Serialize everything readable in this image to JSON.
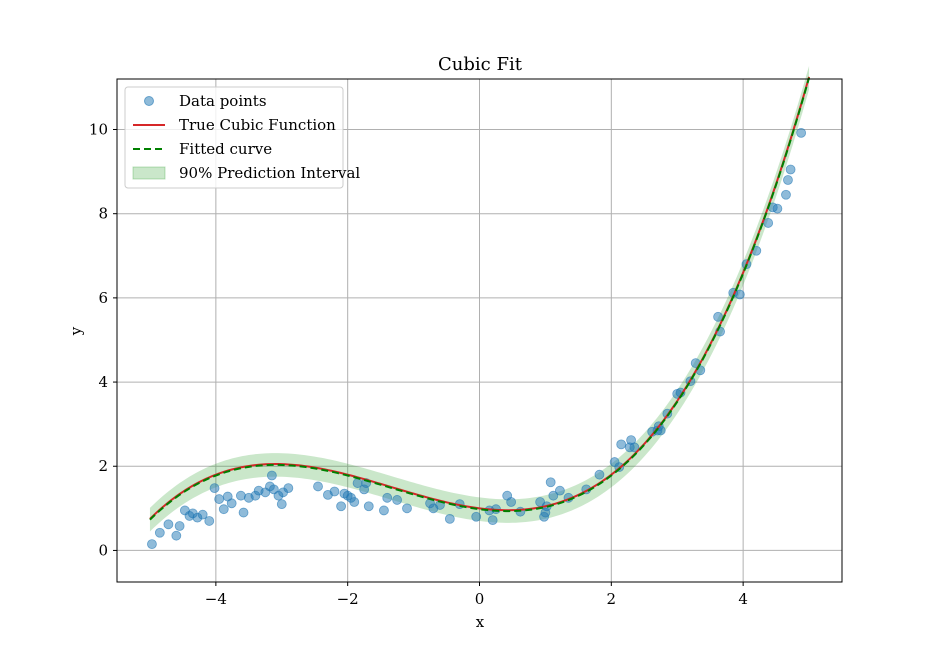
{
  "chart_data": {
    "type": "scatter",
    "title": "Cubic Fit",
    "xlabel": "x",
    "ylabel": "y",
    "xlim": [
      -5.5,
      5.5
    ],
    "ylim": [
      -0.75,
      11.2
    ],
    "grid": true,
    "legend_position": "top-left",
    "x_ticks": [
      -4,
      -2,
      0,
      2,
      4
    ],
    "x_tick_labels": [
      "−4",
      "−2",
      "0",
      "2",
      "4"
    ],
    "y_ticks": [
      0,
      2,
      4,
      6,
      8,
      10
    ],
    "y_tick_labels": [
      "0",
      "2",
      "4",
      "6",
      "8",
      "10"
    ],
    "legend": {
      "data_points": "Data points",
      "true_function": "True Cubic Function",
      "fitted_curve": "Fitted curve",
      "prediction_interval": "90% Prediction Interval"
    },
    "colors": {
      "points": "#1f77b4",
      "true_function": "#d62728",
      "fitted_curve": "#008000",
      "interval": "#2ca02c"
    },
    "true_function": {
      "coefficients": {
        "a3": 0.05,
        "a2": 0.2,
        "a1": -0.2,
        "a0": 1.0
      },
      "x_range": [
        -5,
        5
      ]
    },
    "fitted_curve": {
      "coefficients": {
        "a3": 0.05,
        "a2": 0.2,
        "a1": -0.2,
        "a0": 0.98
      },
      "x_range": [
        -5,
        5
      ]
    },
    "prediction_interval": {
      "half_width": 0.28,
      "x_range": [
        -5,
        5
      ]
    },
    "series": [
      {
        "name": "Data points",
        "x": [
          -4.97,
          -4.85,
          -4.72,
          -4.6,
          -4.55,
          -4.47,
          -4.4,
          -4.35,
          -4.28,
          -4.2,
          -4.1,
          -4.02,
          -3.95,
          -3.88,
          -3.82,
          -3.76,
          -3.62,
          -3.58,
          -3.5,
          -3.4,
          -3.35,
          -3.25,
          -3.18,
          -3.15,
          -3.12,
          -3.05,
          -3.0,
          -2.98,
          -2.9,
          -2.45,
          -2.3,
          -2.2,
          -2.1,
          -2.05,
          -2.0,
          -1.95,
          -1.9,
          -1.85,
          -1.75,
          -1.72,
          -1.68,
          -1.45,
          -1.4,
          -1.25,
          -1.1,
          -0.75,
          -0.7,
          -0.6,
          -0.45,
          -0.3,
          -0.05,
          0.15,
          0.2,
          0.25,
          0.42,
          0.48,
          0.62,
          0.92,
          0.98,
          1.0,
          1.02,
          1.08,
          1.12,
          1.22,
          1.35,
          1.62,
          1.82,
          2.05,
          2.12,
          2.15,
          2.28,
          2.3,
          2.35,
          2.62,
          2.7,
          2.72,
          2.75,
          2.85,
          3.0,
          3.05,
          3.2,
          3.28,
          3.35,
          3.62,
          3.65,
          3.85,
          3.95,
          4.05,
          4.2,
          4.38,
          4.45,
          4.52,
          4.65,
          4.68,
          4.72,
          4.88
        ],
        "y": [
          0.15,
          0.42,
          0.62,
          0.35,
          0.58,
          0.95,
          0.82,
          0.88,
          0.78,
          0.85,
          0.7,
          1.48,
          1.22,
          0.98,
          1.28,
          1.12,
          1.3,
          0.9,
          1.25,
          1.3,
          1.42,
          1.38,
          1.52,
          1.78,
          1.45,
          1.3,
          1.1,
          1.38,
          1.48,
          1.52,
          1.32,
          1.4,
          1.05,
          1.35,
          1.3,
          1.25,
          1.15,
          1.6,
          1.45,
          1.6,
          1.05,
          0.95,
          1.25,
          1.2,
          1.0,
          1.12,
          1.0,
          1.08,
          0.75,
          1.1,
          0.8,
          0.95,
          0.72,
          0.98,
          1.3,
          1.15,
          0.92,
          1.15,
          0.8,
          0.9,
          1.05,
          1.62,
          1.3,
          1.42,
          1.25,
          1.45,
          1.8,
          2.1,
          1.98,
          2.52,
          2.45,
          2.62,
          2.45,
          2.82,
          2.85,
          2.95,
          2.85,
          3.25,
          3.72,
          3.75,
          4.02,
          4.45,
          4.28,
          5.55,
          5.2,
          6.12,
          6.08,
          6.8,
          7.12,
          7.78,
          8.15,
          8.12,
          8.45,
          8.8,
          9.05,
          9.92
        ]
      }
    ]
  }
}
